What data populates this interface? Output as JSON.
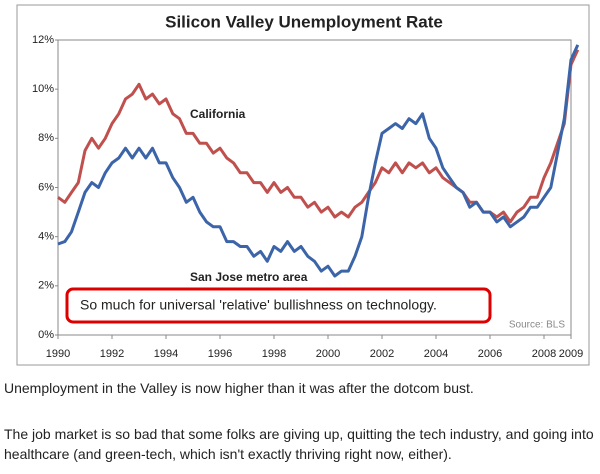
{
  "chart_data": {
    "type": "line",
    "title": "Silicon Valley Unemployment Rate",
    "x": [
      1990,
      1990.25,
      1990.5,
      1990.75,
      1991,
      1991.25,
      1991.5,
      1991.75,
      1992,
      1992.25,
      1992.5,
      1992.75,
      1993,
      1993.25,
      1993.5,
      1993.75,
      1994,
      1994.25,
      1994.5,
      1994.75,
      1995,
      1995.25,
      1995.5,
      1995.75,
      1996,
      1996.25,
      1996.5,
      1996.75,
      1997,
      1997.25,
      1997.5,
      1997.75,
      1998,
      1998.25,
      1998.5,
      1998.75,
      1999,
      1999.25,
      1999.5,
      1999.75,
      2000,
      2000.25,
      2000.5,
      2000.75,
      2001,
      2001.25,
      2001.5,
      2001.75,
      2002,
      2002.25,
      2002.5,
      2002.75,
      2003,
      2003.25,
      2003.5,
      2003.75,
      2004,
      2004.25,
      2004.5,
      2004.75,
      2005,
      2005.25,
      2005.5,
      2005.75,
      2006,
      2006.25,
      2006.5,
      2006.75,
      2007,
      2007.25,
      2007.5,
      2007.75,
      2008,
      2008.25,
      2008.5,
      2008.75,
      2009,
      2009.25
    ],
    "series": [
      {
        "name": "California",
        "color": "#c0504d",
        "values": [
          5.6,
          5.4,
          5.8,
          6.2,
          7.5,
          8.0,
          7.6,
          8.0,
          8.6,
          9.0,
          9.6,
          9.8,
          10.2,
          9.6,
          9.8,
          9.4,
          9.6,
          9.0,
          8.8,
          8.2,
          8.2,
          7.8,
          7.8,
          7.4,
          7.6,
          7.2,
          7.0,
          6.6,
          6.6,
          6.2,
          6.2,
          5.8,
          6.2,
          5.8,
          6.0,
          5.6,
          5.6,
          5.2,
          5.4,
          5.0,
          5.2,
          4.8,
          5.0,
          4.8,
          5.2,
          5.4,
          5.8,
          6.2,
          6.8,
          6.6,
          7.0,
          6.6,
          7.0,
          6.8,
          7.0,
          6.6,
          6.8,
          6.4,
          6.2,
          6.0,
          5.8,
          5.4,
          5.4,
          5.0,
          5.0,
          4.8,
          5.0,
          4.6,
          5.0,
          5.2,
          5.6,
          5.6,
          6.4,
          7.0,
          7.8,
          8.6,
          11.0,
          11.6
        ]
      },
      {
        "name": "San Jose metro area",
        "color": "#3c64a8",
        "values": [
          3.7,
          3.8,
          4.2,
          5.0,
          5.8,
          6.2,
          6.0,
          6.6,
          7.0,
          7.2,
          7.6,
          7.2,
          7.6,
          7.2,
          7.6,
          7.0,
          7.0,
          6.4,
          6.0,
          5.4,
          5.6,
          5.0,
          4.6,
          4.4,
          4.4,
          3.8,
          3.8,
          3.6,
          3.6,
          3.2,
          3.4,
          3.0,
          3.6,
          3.4,
          3.8,
          3.4,
          3.6,
          3.2,
          3.0,
          2.6,
          2.8,
          2.4,
          2.6,
          2.6,
          3.2,
          4.0,
          5.6,
          7.0,
          8.2,
          8.4,
          8.6,
          8.4,
          8.8,
          8.6,
          9.0,
          8.0,
          7.6,
          6.8,
          6.4,
          6.0,
          5.8,
          5.2,
          5.4,
          5.0,
          5.0,
          4.6,
          4.8,
          4.4,
          4.6,
          4.8,
          5.2,
          5.2,
          5.6,
          6.0,
          7.4,
          8.8,
          11.2,
          11.8
        ]
      }
    ],
    "xlim": [
      1990,
      2009
    ],
    "xticks": [
      1990,
      1992,
      1994,
      1996,
      1998,
      2000,
      2002,
      2004,
      2006,
      2008,
      2009
    ],
    "ylim": [
      0,
      12
    ],
    "yticks": [
      {
        "value": 0,
        "label": "0%"
      },
      {
        "value": 2,
        "label": "2%"
      },
      {
        "value": 4,
        "label": "4%"
      },
      {
        "value": 6,
        "label": "6%"
      },
      {
        "value": 8,
        "label": "8%"
      },
      {
        "value": 10,
        "label": "10%"
      },
      {
        "value": 12,
        "label": "12%"
      }
    ],
    "source": "Source: BLS",
    "callout": "So much for universal 'relative' bullishness on technology."
  },
  "article": {
    "paragraphs": [
      "Unemployment in the Valley is now higher than it was after the dotcom bust.",
      "The job market is so bad that some folks are giving up, quitting the tech industry, and going into healthcare (and green-tech, which isn't exactly thriving right now, either)."
    ]
  }
}
